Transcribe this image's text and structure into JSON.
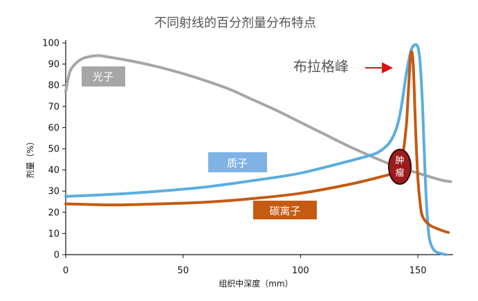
{
  "chart_data": {
    "type": "line",
    "title": "不同射线的百分剂量分布特点",
    "xlabel": "组织中深度（mm）",
    "ylabel": "剂量（%）",
    "xlim": [
      0,
      165
    ],
    "ylim": [
      0,
      100
    ],
    "x_ticks": [
      "0",
      "50",
      "100",
      "150"
    ],
    "y_ticks": [
      "0",
      "10",
      "20",
      "30",
      "40",
      "50",
      "60",
      "70",
      "80",
      "90",
      "100"
    ],
    "legend": "inline labels",
    "series": [
      {
        "name": "光子",
        "color": "#a6a6a6",
        "points": [
          [
            0,
            77
          ],
          [
            1,
            83
          ],
          [
            2,
            87
          ],
          [
            4,
            90
          ],
          [
            7,
            92.5
          ],
          [
            10,
            93.5
          ],
          [
            14,
            94
          ],
          [
            20,
            93
          ],
          [
            30,
            91
          ],
          [
            40,
            88.5
          ],
          [
            50,
            85.5
          ],
          [
            60,
            82
          ],
          [
            70,
            78
          ],
          [
            80,
            73
          ],
          [
            90,
            68
          ],
          [
            100,
            62.5
          ],
          [
            110,
            57
          ],
          [
            120,
            51.5
          ],
          [
            130,
            46.5
          ],
          [
            140,
            42
          ],
          [
            150,
            38.5
          ],
          [
            160,
            35.2
          ],
          [
            164,
            34.5
          ]
        ]
      },
      {
        "name": "质子",
        "color": "#5aaee0",
        "points": [
          [
            0,
            27.5
          ],
          [
            20,
            28.5
          ],
          [
            40,
            30
          ],
          [
            60,
            32
          ],
          [
            80,
            35
          ],
          [
            100,
            38.5
          ],
          [
            120,
            44
          ],
          [
            130,
            47
          ],
          [
            134,
            49
          ],
          [
            138,
            53
          ],
          [
            141,
            60
          ],
          [
            143,
            70
          ],
          [
            145,
            85
          ],
          [
            147,
            96
          ],
          [
            148.5,
            99
          ],
          [
            150,
            98
          ],
          [
            151,
            90
          ],
          [
            152,
            70
          ],
          [
            153,
            40
          ],
          [
            154,
            18
          ],
          [
            155,
            7
          ],
          [
            157,
            2
          ],
          [
            160,
            0.5
          ],
          [
            162,
            0
          ]
        ]
      },
      {
        "name": "碳离子",
        "color": "#c55a11",
        "points": [
          [
            0,
            24
          ],
          [
            20,
            23.5
          ],
          [
            40,
            24
          ],
          [
            60,
            24.8
          ],
          [
            80,
            26.5
          ],
          [
            100,
            29
          ],
          [
            120,
            33
          ],
          [
            135,
            37
          ],
          [
            140,
            39
          ],
          [
            143,
            44
          ],
          [
            145,
            60
          ],
          [
            146,
            78
          ],
          [
            147,
            95
          ],
          [
            148,
            90
          ],
          [
            149,
            60
          ],
          [
            150,
            36
          ],
          [
            151,
            24
          ],
          [
            152,
            18
          ],
          [
            155,
            14
          ],
          [
            160,
            11.5
          ],
          [
            163,
            10.5
          ]
        ]
      }
    ],
    "annotations": {
      "peak_label": "布拉格峰",
      "tumor_label": [
        "肿",
        "瘤"
      ]
    }
  }
}
